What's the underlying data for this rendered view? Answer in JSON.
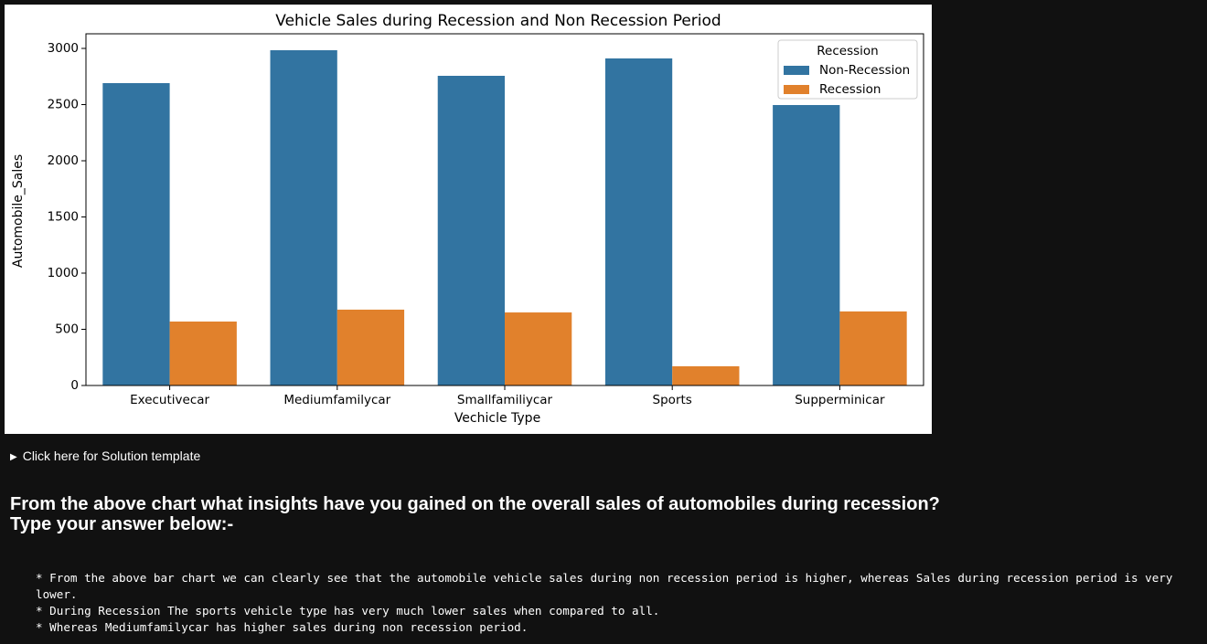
{
  "chart_data": {
    "type": "bar",
    "title": "Vehicle Sales during Recession and Non Recession Period",
    "x_label": "Vechicle Type",
    "y_label": "Automobile_Sales",
    "categories": [
      "Executivecar",
      "Mediumfamilycar",
      "Smallfamiliycar",
      "Sports",
      "Supperminicar"
    ],
    "series": [
      {
        "name": "Non-Recession",
        "color": "#3274a1",
        "values": [
          2691,
          2984,
          2756,
          2911,
          2496
        ]
      },
      {
        "name": "Recession",
        "color": "#e1812c",
        "values": [
          569,
          675,
          650,
          171,
          659
        ]
      }
    ],
    "legend_title": "Recession",
    "legend_position": "upper right",
    "ylim": [
      0,
      3130
    ],
    "yticks": [
      0,
      500,
      1000,
      1500,
      2000,
      2500,
      3000
    ],
    "grid": false
  },
  "solution_summary": "Click here for Solution template",
  "question": [
    "From the above chart what insights have you gained on the overall sales of automobiles during recession?",
    "Type your answer below:-"
  ],
  "answer_lines": [
    "* From the above bar chart we can clearly see that the automobile vehicle sales during non recession period is higher, whereas Sales during recession period is very lower.",
    "* During Recession The sports vehicle type has very much lower sales when compared to all.",
    "* Whereas Mediumfamilycar has higher sales during non recession period."
  ]
}
